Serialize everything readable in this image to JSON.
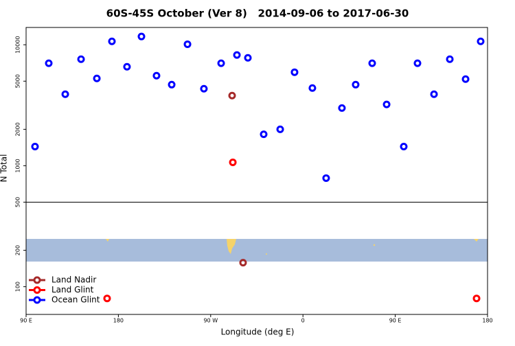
{
  "chart_data": {
    "type": "scatter",
    "title": "60S-45S October (Ver 8)   2014-09-06 to 2017-06-30",
    "x_label": "Longitude (deg E)",
    "y_label": "N Total",
    "log_y": true,
    "xlim": [
      90,
      540
    ],
    "ylim": [
      59,
      13900
    ],
    "xticks": [
      {
        "value": 90,
        "label": "90 E"
      },
      {
        "value": 180,
        "label": "180"
      },
      {
        "value": 270,
        "label": "90 W"
      },
      {
        "value": 360,
        "label": "0"
      },
      {
        "value": 450,
        "label": "90 E"
      },
      {
        "value": 540,
        "label": "180"
      }
    ],
    "yticks": [
      100,
      200,
      500,
      1000,
      2000,
      5000,
      10000
    ],
    "divider": 500,
    "series": [
      {
        "name": "Land Nadir",
        "color": "#a52a2a",
        "x": [
          290.9,
          301.6
        ],
        "values": [
          3800,
          158
        ]
      },
      {
        "name": "Land Glint",
        "color": "#ff0000",
        "x": [
          291.6,
          169.0,
          529.3
        ],
        "values": [
          1067,
          80,
          80
        ]
      },
      {
        "name": "Ocean Glint",
        "color": "#0000ff",
        "x": [
          98.7,
          112.1,
          128.2,
          143.6,
          159.0,
          173.7,
          188.4,
          202.5,
          217.2,
          232.0,
          247.4,
          263.4,
          280.2,
          295.6,
          306.3,
          321.7,
          337.8,
          351.8,
          369.2,
          382.6,
          398.0,
          411.4,
          427.5,
          441.6,
          458.3,
          471.7,
          487.8,
          503.2,
          518.6,
          533.3
        ],
        "values": [
          1440,
          7030,
          3900,
          7600,
          5270,
          10670,
          6580,
          11700,
          5550,
          4680,
          10100,
          4330,
          7030,
          8230,
          7800,
          1820,
          2000,
          5930,
          4390,
          790,
          3000,
          4680,
          7030,
          3210,
          1440,
          7030,
          3900,
          7600,
          5200,
          10670
        ]
      }
    ],
    "legend": "bottom-left"
  }
}
